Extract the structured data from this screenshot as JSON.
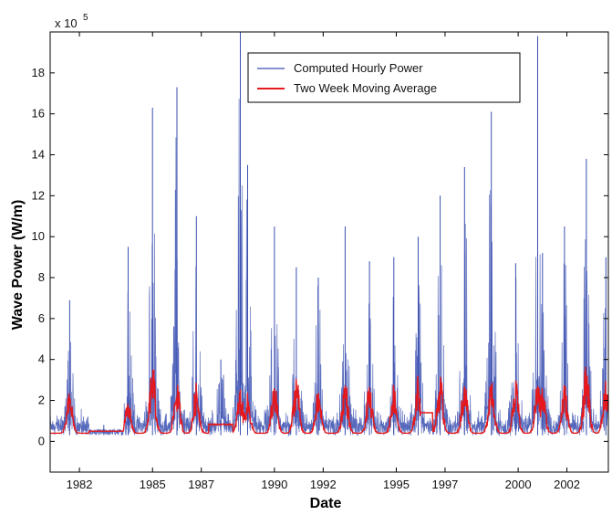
{
  "chart_data": {
    "type": "line",
    "title": "",
    "xlabel": "Date",
    "ylabel": "Wave Power (W/m)",
    "y_multiplier_label": "x 10",
    "y_multiplier_exponent": "5",
    "xlim": [
      1980.8,
      2003.7
    ],
    "ylim": [
      -1.5,
      20
    ],
    "grid": false,
    "legend_position": "top-right",
    "x_tick_values": [
      1982,
      1985,
      1987,
      1990,
      1992,
      1995,
      1997,
      2000,
      2002
    ],
    "x_tick_labels": [
      "1982",
      "1985",
      "1987",
      "1990",
      "1992",
      "1995",
      "1997",
      "2000",
      "2002"
    ],
    "y_tick_values": [
      0,
      2,
      4,
      6,
      8,
      10,
      12,
      14,
      16,
      18
    ],
    "y_tick_labels": [
      "0",
      "2",
      "4",
      "6",
      "8",
      "10",
      "12",
      "14",
      "16",
      "18"
    ],
    "series": [
      {
        "name": "Computed Hourly Power",
        "color": "#3a4fb0",
        "seasonal_peaks": [
          [
            1981.6,
            6.9
          ],
          [
            1983.0,
            0.8
          ],
          [
            1984.0,
            9.5
          ],
          [
            1985.0,
            16.3
          ],
          [
            1986.0,
            17.3
          ],
          [
            1986.8,
            11.0
          ],
          [
            1987.8,
            4.0
          ],
          [
            1988.6,
            20.0
          ],
          [
            1988.9,
            13.5
          ],
          [
            1990.0,
            10.5
          ],
          [
            1990.9,
            8.5
          ],
          [
            1991.8,
            8.0
          ],
          [
            1992.9,
            10.5
          ],
          [
            1993.9,
            8.8
          ],
          [
            1994.9,
            9.0
          ],
          [
            1995.9,
            10.0
          ],
          [
            1996.8,
            12.0
          ],
          [
            1997.8,
            13.4
          ],
          [
            1998.9,
            16.1
          ],
          [
            1999.9,
            8.7
          ],
          [
            2000.8,
            19.8
          ],
          [
            2001.0,
            9.2
          ],
          [
            2001.9,
            10.5
          ],
          [
            2002.8,
            13.8
          ],
          [
            2003.6,
            9.0
          ]
        ]
      },
      {
        "name": "Two Week Moving Average",
        "color": "#e5191d",
        "seasonal_peaks": [
          [
            1981.6,
            2.1
          ],
          [
            1983.0,
            0.6
          ],
          [
            1984.0,
            1.6
          ],
          [
            1985.0,
            3.5
          ],
          [
            1986.0,
            2.7
          ],
          [
            1986.8,
            2.5
          ],
          [
            1987.8,
            1.2
          ],
          [
            1988.6,
            2.3
          ],
          [
            1988.9,
            2.0
          ],
          [
            1990.0,
            2.6
          ],
          [
            1990.9,
            3.1
          ],
          [
            1991.8,
            2.2
          ],
          [
            1992.9,
            2.8
          ],
          [
            1993.9,
            2.4
          ],
          [
            1994.9,
            2.5
          ],
          [
            1995.9,
            2.9
          ],
          [
            1996.8,
            3.0
          ],
          [
            1997.8,
            2.8
          ],
          [
            1998.9,
            3.1
          ],
          [
            1999.9,
            2.6
          ],
          [
            2000.8,
            2.7
          ],
          [
            2001.0,
            2.4
          ],
          [
            2001.9,
            2.5
          ],
          [
            2002.8,
            3.6
          ],
          [
            2003.6,
            2.7
          ]
        ]
      }
    ]
  }
}
